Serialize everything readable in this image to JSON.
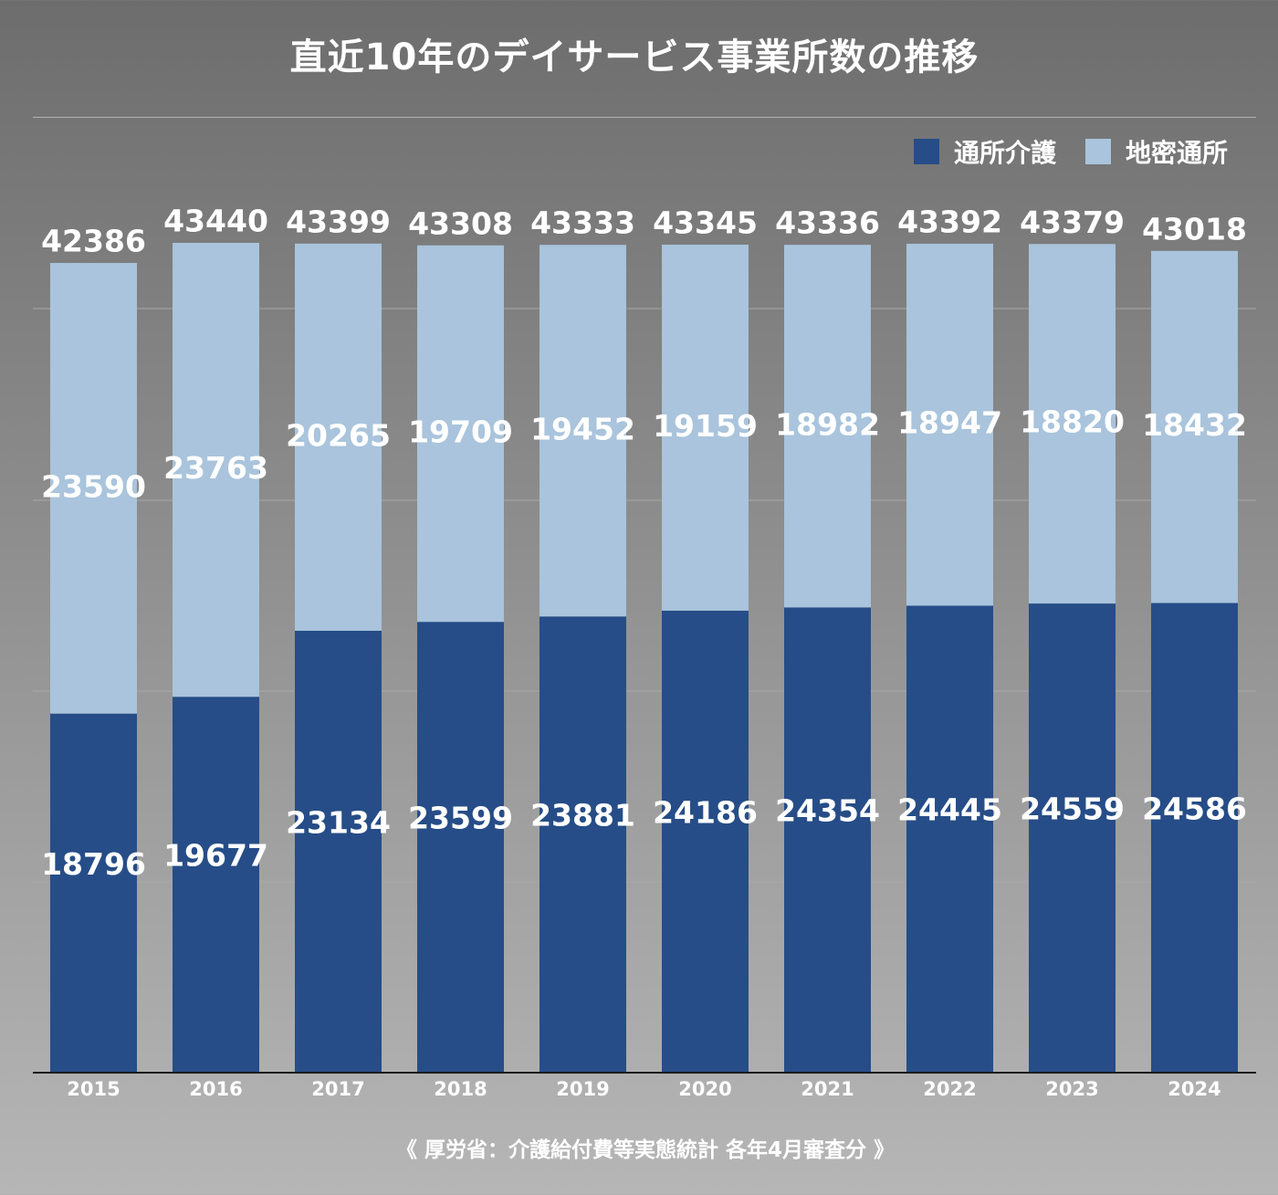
{
  "title": "直近10年のデイサービス事業所数の推移",
  "source": "《 厚労省：介護給付費等実態統計 各年4月審査分 》",
  "legend": {
    "series1": "通所介護",
    "series2": "地密通所"
  },
  "colors": {
    "series1": "#264d87",
    "series2": "#a9c4dc",
    "label": "#ffffff",
    "axis": "#1c1c1c",
    "grid": "#a8a8a8"
  },
  "chart_data": {
    "type": "bar",
    "stacked": true,
    "title": "直近10年のデイサービス事業所数の推移",
    "categories": [
      "2015",
      "2016",
      "2017",
      "2018",
      "2019",
      "2020",
      "2021",
      "2022",
      "2023",
      "2024"
    ],
    "series": [
      {
        "name": "通所介護",
        "values": [
          18796,
          19677,
          23134,
          23599,
          23881,
          24186,
          24354,
          24445,
          24559,
          24586
        ]
      },
      {
        "name": "地密通所",
        "values": [
          23590,
          23763,
          20265,
          19709,
          19452,
          19159,
          18982,
          18947,
          18820,
          18432
        ]
      }
    ],
    "totals": [
      42386,
      43440,
      43399,
      43308,
      43333,
      43345,
      43336,
      43392,
      43379,
      43018
    ],
    "ylim": [
      0,
      43440
    ],
    "grid": true,
    "legend_position": "top-right",
    "xlabel": "",
    "ylabel": ""
  }
}
